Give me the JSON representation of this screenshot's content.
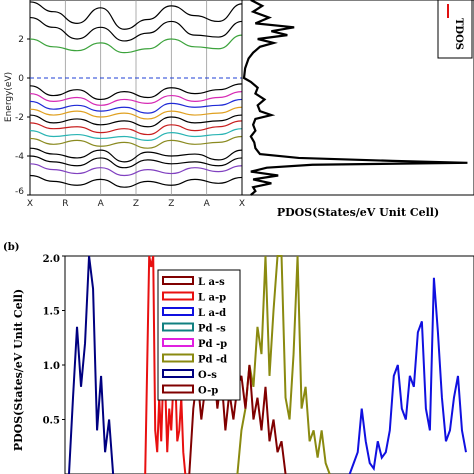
{
  "chart_data": [
    {
      "type": "line",
      "ylabel": "Energy(eV)",
      "ylim": [
        -6,
        4
      ],
      "yticks": [
        "2",
        "0",
        "-2",
        "-4",
        "-6"
      ],
      "x_points": [
        "X",
        "R",
        "A",
        "Z",
        "Z",
        "A",
        "X"
      ],
      "fermi_level": 0,
      "bands": [
        {
          "color": "#000000",
          "values": [
            3.9,
            3.4,
            2.8,
            3.6,
            2.5,
            3.0,
            3.7,
            3.2,
            2.9,
            3.8
          ]
        },
        {
          "color": "#000000",
          "values": [
            3.1,
            2.6,
            2.0,
            2.6,
            1.9,
            2.3,
            2.9,
            2.2,
            2.1,
            2.9
          ]
        },
        {
          "color": "#3ca33c",
          "values": [
            2.0,
            1.6,
            1.4,
            1.8,
            1.3,
            1.5,
            2.0,
            1.6,
            1.5,
            2.2
          ]
        },
        {
          "color": "#000000",
          "values": [
            -0.4,
            -0.9,
            -0.6,
            -1.1,
            -0.7,
            -1.0,
            -0.5,
            -0.8,
            -0.6,
            -0.3
          ]
        },
        {
          "color": "#d62ab4",
          "values": [
            -0.8,
            -1.2,
            -1.0,
            -1.4,
            -1.1,
            -1.3,
            -0.9,
            -1.2,
            -1.0,
            -0.7
          ]
        },
        {
          "color": "#1f2ad6",
          "values": [
            -1.2,
            -1.6,
            -1.4,
            -1.7,
            -1.5,
            -1.8,
            -1.3,
            -1.5,
            -1.4,
            -1.1
          ]
        },
        {
          "color": "#e0a020",
          "values": [
            -1.6,
            -1.9,
            -1.7,
            -2.0,
            -1.8,
            -2.1,
            -1.7,
            -1.9,
            -1.8,
            -1.5
          ]
        },
        {
          "color": "#000000",
          "values": [
            -1.9,
            -2.3,
            -2.1,
            -2.4,
            -2.2,
            -2.5,
            -2.0,
            -2.3,
            -2.2,
            -1.9
          ]
        },
        {
          "color": "#c81e1e",
          "values": [
            -2.3,
            -2.6,
            -2.5,
            -2.8,
            -2.6,
            -2.9,
            -2.4,
            -2.7,
            -2.5,
            -2.2
          ]
        },
        {
          "color": "#2ab4b4",
          "values": [
            -2.7,
            -3.0,
            -2.9,
            -3.1,
            -3.0,
            -3.2,
            -2.8,
            -3.0,
            -2.9,
            -2.6
          ]
        },
        {
          "color": "#8a8a20",
          "values": [
            -3.1,
            -3.4,
            -3.2,
            -3.5,
            -3.3,
            -3.6,
            -3.2,
            -3.4,
            -3.3,
            -3.0
          ]
        },
        {
          "color": "#000000",
          "values": [
            -3.6,
            -3.9,
            -4.1,
            -3.7,
            -4.3,
            -3.8,
            -4.0,
            -3.9,
            -4.2,
            -3.7
          ]
        },
        {
          "color": "#000000",
          "values": [
            -4.0,
            -4.3,
            -4.5,
            -4.1,
            -4.6,
            -4.2,
            -4.4,
            -4.3,
            -4.5,
            -4.1
          ]
        },
        {
          "color": "#8040c0",
          "values": [
            -4.4,
            -4.7,
            -4.9,
            -4.6,
            -5.0,
            -4.7,
            -4.9,
            -4.6,
            -4.8,
            -4.5
          ]
        },
        {
          "color": "#000000",
          "values": [
            -5.0,
            -5.3,
            -5.5,
            -5.2,
            -5.6,
            -5.3,
            -5.5,
            -5.2,
            -5.4,
            -5.1
          ]
        }
      ]
    },
    {
      "type": "line",
      "xlabel": "PDOS(States/eV Unit Cell)",
      "ylim": [
        -6,
        4
      ],
      "legend": "top-right",
      "series": [
        {
          "name": "TDOS",
          "color": "#000000",
          "energy": [
            4.0,
            3.7,
            3.4,
            3.1,
            2.8,
            2.6,
            2.4,
            2.2,
            2.0,
            1.8,
            1.6,
            1.3,
            1.0,
            0.5,
            0.0,
            -0.2,
            -0.5,
            -0.8,
            -1.1,
            -1.4,
            -1.7,
            -1.9,
            -2.1,
            -2.4,
            -2.7,
            -3.0,
            -3.3,
            -3.6,
            -3.9,
            -4.1,
            -4.25,
            -4.35,
            -4.45,
            -4.6,
            -4.8,
            -5.0,
            -5.2,
            -5.4,
            -5.6,
            -5.8,
            -6.0
          ],
          "dos": [
            0.3,
            0.8,
            0.4,
            1.1,
            0.5,
            2.2,
            1.2,
            1.9,
            0.6,
            1.3,
            0.7,
            0.4,
            0.2,
            0.05,
            0.0,
            0.3,
            0.6,
            0.5,
            0.9,
            0.6,
            0.7,
            1.2,
            0.5,
            0.4,
            0.5,
            0.3,
            0.45,
            0.5,
            0.7,
            2.4,
            6.5,
            9.8,
            3.0,
            1.0,
            0.3,
            1.5,
            0.4,
            1.2,
            0.4,
            0.5,
            0.3
          ]
        }
      ]
    },
    {
      "type": "line",
      "panel_label": "(b)",
      "ylabel": "PDOS(States/eV Unit Cell)",
      "ylim": [
        0,
        2.0
      ],
      "yticks": [
        "2.0",
        "1.5",
        "1.0",
        "0.5"
      ],
      "legend": "top-left",
      "series": [
        {
          "name": "L a-s",
          "color": "#800000",
          "x": [],
          "y": []
        },
        {
          "name": "L a-p",
          "color": "#e81010",
          "x": [
            0.19,
            0.2,
            0.205,
            0.21,
            0.215,
            0.22,
            0.225,
            0.23,
            0.235,
            0.24,
            0.245,
            0.25,
            0.255,
            0.26,
            0.265,
            0.27,
            0.275,
            0.28,
            0.285,
            0.29
          ],
          "y": [
            0.0,
            2.0,
            1.9,
            2.0,
            0.4,
            0.2,
            0.7,
            0.3,
            0.9,
            0.8,
            0.2,
            0.6,
            0.4,
            0.8,
            0.9,
            0.3,
            0.4,
            0.7,
            0.2,
            0.0
          ]
        },
        {
          "name": "L a-d",
          "color": "#1010e0",
          "x": [
            0.7,
            0.71,
            0.72,
            0.73,
            0.74,
            0.75,
            0.76,
            0.77,
            0.78,
            0.79,
            0.8,
            0.81,
            0.82,
            0.83,
            0.84,
            0.85,
            0.86,
            0.87,
            0.88,
            0.89,
            0.9,
            0.91,
            0.92,
            0.93,
            0.94,
            0.95,
            0.96,
            0.97,
            0.98,
            0.99
          ],
          "y": [
            0.0,
            0.1,
            0.2,
            0.6,
            0.3,
            0.1,
            0.05,
            0.3,
            0.15,
            0.2,
            0.4,
            0.9,
            1.0,
            0.6,
            0.5,
            0.9,
            0.8,
            1.3,
            1.4,
            0.6,
            0.4,
            1.8,
            1.3,
            0.7,
            0.3,
            0.4,
            0.7,
            0.9,
            0.4,
            0.2
          ]
        },
        {
          "name": "Pd -s",
          "color": "#108080",
          "x": [],
          "y": []
        },
        {
          "name": "Pd -p",
          "color": "#e020e0",
          "x": [],
          "y": []
        },
        {
          "name": "Pd -d",
          "color": "#8a8a10",
          "x": [
            0.42,
            0.43,
            0.44,
            0.45,
            0.46,
            0.47,
            0.48,
            0.49,
            0.5,
            0.51,
            0.52,
            0.53,
            0.54,
            0.55,
            0.56,
            0.57,
            0.58,
            0.59,
            0.6,
            0.61,
            0.62,
            0.63,
            0.64,
            0.65
          ],
          "y": [
            0.0,
            0.4,
            0.6,
            1.0,
            0.8,
            1.35,
            1.1,
            2.0,
            0.9,
            1.5,
            2.0,
            2.0,
            0.7,
            0.5,
            1.1,
            2.0,
            0.6,
            0.8,
            0.3,
            0.4,
            0.15,
            0.4,
            0.1,
            0.0
          ]
        },
        {
          "name": "O-s",
          "color": "#000080",
          "x": [
            0.0,
            0.01,
            0.02,
            0.03,
            0.04,
            0.05,
            0.06,
            0.07,
            0.08,
            0.09,
            0.1,
            0.11
          ],
          "y": [
            0.0,
            0.7,
            1.35,
            0.8,
            1.2,
            2.0,
            1.7,
            0.4,
            0.9,
            0.2,
            0.5,
            0.0
          ]
        },
        {
          "name": "O-p",
          "color": "#800000",
          "x": [
            0.3,
            0.31,
            0.32,
            0.33,
            0.34,
            0.35,
            0.36,
            0.37,
            0.38,
            0.39,
            0.4,
            0.41,
            0.42,
            0.43,
            0.44,
            0.45,
            0.46,
            0.47,
            0.48,
            0.49,
            0.5,
            0.51,
            0.52,
            0.53,
            0.54
          ],
          "y": [
            0.0,
            0.6,
            0.9,
            0.5,
            0.8,
            0.7,
            1.05,
            0.6,
            0.9,
            0.4,
            0.75,
            0.5,
            0.8,
            0.9,
            0.6,
            1.0,
            0.5,
            0.7,
            0.4,
            0.8,
            0.3,
            0.5,
            0.2,
            0.3,
            0.0
          ]
        }
      ]
    }
  ]
}
